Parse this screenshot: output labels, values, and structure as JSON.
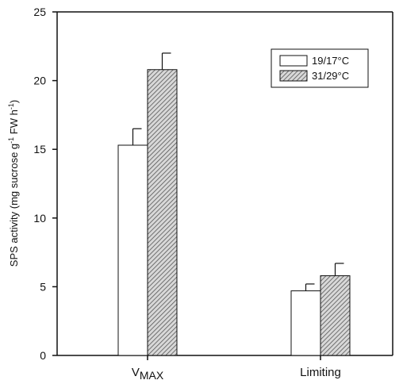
{
  "chart_data": {
    "type": "bar",
    "ylabel_main": "SPS activity (mg sucrose g",
    "ylabel_sup1": "-1",
    "ylabel_mid": " FW h",
    "ylabel_sup2": "-1",
    "ylabel_end": ")",
    "xlabel": "",
    "ylim": [
      0,
      25
    ],
    "yticks": [
      "0",
      "5",
      "10",
      "15",
      "20",
      "25"
    ],
    "categories": [
      {
        "main": "V",
        "sub": "MAX"
      },
      {
        "main": "Limiting",
        "sub": ""
      }
    ],
    "series": [
      {
        "name": "19/17°C",
        "values": [
          15.3,
          4.7
        ],
        "errors": [
          1.2,
          0.5
        ],
        "fill": "#ffffff"
      },
      {
        "name": "31/29°C",
        "values": [
          20.8,
          5.8
        ],
        "errors": [
          1.2,
          0.9
        ],
        "fill": "hatch"
      }
    ],
    "legend_position": "top-right",
    "grid": false
  },
  "colors": {
    "axis": "#111111",
    "hatch": "#444444"
  }
}
